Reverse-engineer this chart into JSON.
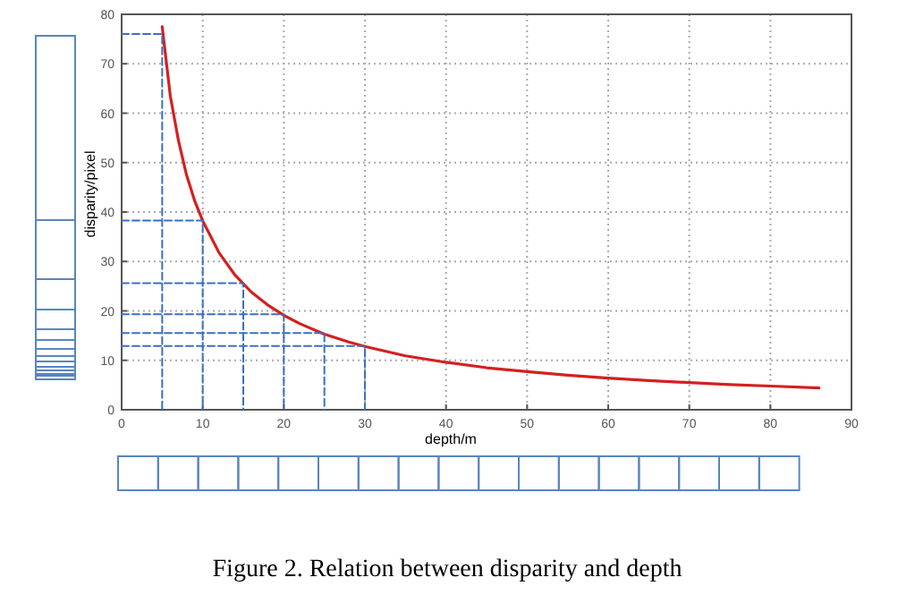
{
  "chart_data": {
    "type": "line",
    "xlabel": "depth/m",
    "ylabel": "disparity/pixel",
    "xlim": [
      0,
      90
    ],
    "ylim": [
      0,
      80
    ],
    "xticks": [
      0,
      10,
      20,
      30,
      40,
      50,
      60,
      70,
      80,
      90
    ],
    "yticks": [
      0,
      10,
      20,
      30,
      40,
      50,
      60,
      70,
      80
    ],
    "grid": true,
    "line_style": "solid",
    "marker": "none",
    "series": [
      {
        "color": "#d42020",
        "x": [
          5,
          6,
          7,
          8,
          9,
          10,
          12,
          14,
          16,
          18,
          20,
          22,
          25,
          28,
          30,
          35,
          40,
          45,
          50,
          55,
          60,
          65,
          70,
          75,
          80,
          86
        ],
        "values": [
          77.5,
          63.5,
          54.5,
          47.5,
          42.3,
          38.2,
          31.8,
          27.2,
          23.8,
          21.2,
          19.1,
          17.4,
          15.3,
          13.7,
          12.8,
          10.9,
          9.6,
          8.5,
          7.7,
          7,
          6.4,
          5.9,
          5.5,
          5.1,
          4.8,
          4.4
        ]
      },
      {
        "line_style": "dashed",
        "color": "#3a6fc4",
        "x": [
          0,
          5,
          5
        ],
        "values": [
          76,
          76,
          0
        ]
      },
      {
        "line_style": "dashed",
        "color": "#3a6fc4",
        "x": [
          0,
          10,
          10
        ],
        "values": [
          38.3,
          38.3,
          0
        ]
      },
      {
        "line_style": "dashed",
        "color": "#3a6fc4",
        "x": [
          0,
          15,
          15
        ],
        "values": [
          25.6,
          25.6,
          0
        ]
      },
      {
        "line_style": "dashed",
        "color": "#3a6fc4",
        "x": [
          0,
          20,
          20
        ],
        "values": [
          19.3,
          19.3,
          0
        ]
      },
      {
        "line_style": "dashed",
        "color": "#3a6fc4",
        "x": [
          0,
          25,
          25
        ],
        "values": [
          15.5,
          15.5,
          0
        ]
      },
      {
        "line_style": "dashed",
        "color": "#3a6fc4",
        "x": [
          0,
          30,
          30
        ],
        "values": [
          12.9,
          12.9,
          0
        ]
      }
    ],
    "annotations": [
      "Figure 2. Relation between disparity and depth"
    ]
  }
}
